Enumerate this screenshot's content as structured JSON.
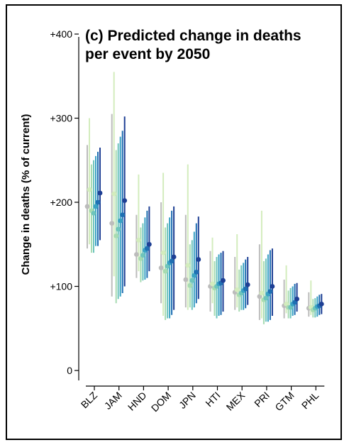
{
  "chart_data": {
    "type": "scatter",
    "title_lines": [
      "(c) Predicted change in deaths",
      "per event by 2050"
    ],
    "ylabel": "Change in deaths (% of current)",
    "ylim": [
      -15,
      410
    ],
    "yticks": [
      {
        "value": 0,
        "label": "0"
      },
      {
        "value": 100,
        "label": "+100"
      },
      {
        "value": 200,
        "label": "+200"
      },
      {
        "value": 300,
        "label": "+300"
      },
      {
        "value": 400,
        "label": "+400"
      }
    ],
    "categories": [
      "BLZ",
      "JAM",
      "HND",
      "DOM",
      "JPN",
      "HTI",
      "MEX",
      "PRI",
      "GTM",
      "PHL"
    ],
    "series_colors": [
      "#bcbcbc",
      "#d3ecbd",
      "#a7dbb2",
      "#6ec4bc",
      "#3aa2c4",
      "#1f6fb2",
      "#1e3f94"
    ],
    "series": [
      {
        "values": [
          195,
          175,
          138,
          122,
          108,
          100,
          93,
          88,
          77,
          74
        ],
        "intervals": [
          [
            145,
            268
          ],
          [
            88,
            305
          ],
          [
            110,
            185
          ],
          [
            80,
            200
          ],
          [
            75,
            185
          ],
          [
            70,
            142
          ],
          [
            72,
            135
          ],
          [
            60,
            150
          ],
          [
            62,
            108
          ],
          [
            64,
            93
          ]
        ]
      },
      {
        "values": [
          215,
          210,
          155,
          140,
          125,
          103,
          96,
          92,
          79,
          75
        ],
        "intervals": [
          [
            150,
            300
          ],
          [
            112,
            355
          ],
          [
            118,
            233
          ],
          [
            65,
            235
          ],
          [
            72,
            245
          ],
          [
            80,
            158
          ],
          [
            75,
            162
          ],
          [
            62,
            190
          ],
          [
            68,
            125
          ],
          [
            66,
            107
          ]
        ]
      },
      {
        "values": [
          190,
          160,
          133,
          118,
          101,
          98,
          90,
          84,
          75,
          72
        ],
        "intervals": [
          [
            140,
            245
          ],
          [
            80,
            262
          ],
          [
            105,
            170
          ],
          [
            60,
            170
          ],
          [
            75,
            150
          ],
          [
            65,
            130
          ],
          [
            70,
            120
          ],
          [
            55,
            130
          ],
          [
            62,
            95
          ],
          [
            63,
            85
          ]
        ]
      },
      {
        "values": [
          187,
          168,
          137,
          124,
          107,
          100,
          92,
          86,
          75,
          74
        ],
        "intervals": [
          [
            140,
            250
          ],
          [
            85,
            270
          ],
          [
            107,
            175
          ],
          [
            62,
            175
          ],
          [
            72,
            155
          ],
          [
            62,
            135
          ],
          [
            72,
            125
          ],
          [
            58,
            133
          ],
          [
            62,
            98
          ],
          [
            63,
            86
          ]
        ]
      },
      {
        "values": [
          195,
          178,
          143,
          128,
          113,
          103,
          95,
          91,
          79,
          76
        ],
        "intervals": [
          [
            148,
            255
          ],
          [
            88,
            278
          ],
          [
            108,
            182
          ],
          [
            62,
            182
          ],
          [
            75,
            165
          ],
          [
            65,
            138
          ],
          [
            72,
            128
          ],
          [
            58,
            138
          ],
          [
            65,
            100
          ],
          [
            64,
            88
          ]
        ]
      },
      {
        "values": [
          200,
          185,
          145,
          130,
          117,
          104,
          97,
          94,
          81,
          77
        ],
        "intervals": [
          [
            148,
            260
          ],
          [
            92,
            285
          ],
          [
            110,
            190
          ],
          [
            66,
            190
          ],
          [
            80,
            175
          ],
          [
            66,
            140
          ],
          [
            74,
            132
          ],
          [
            60,
            143
          ],
          [
            66,
            103
          ],
          [
            66,
            90
          ]
        ]
      },
      {
        "values": [
          211,
          202,
          150,
          135,
          132,
          107,
          102,
          100,
          85,
          79
        ],
        "intervals": [
          [
            155,
            265
          ],
          [
            100,
            302
          ],
          [
            118,
            195
          ],
          [
            72,
            195
          ],
          [
            85,
            183
          ],
          [
            70,
            142
          ],
          [
            78,
            135
          ],
          [
            65,
            145
          ],
          [
            70,
            104
          ],
          [
            67,
            91
          ]
        ]
      }
    ]
  }
}
